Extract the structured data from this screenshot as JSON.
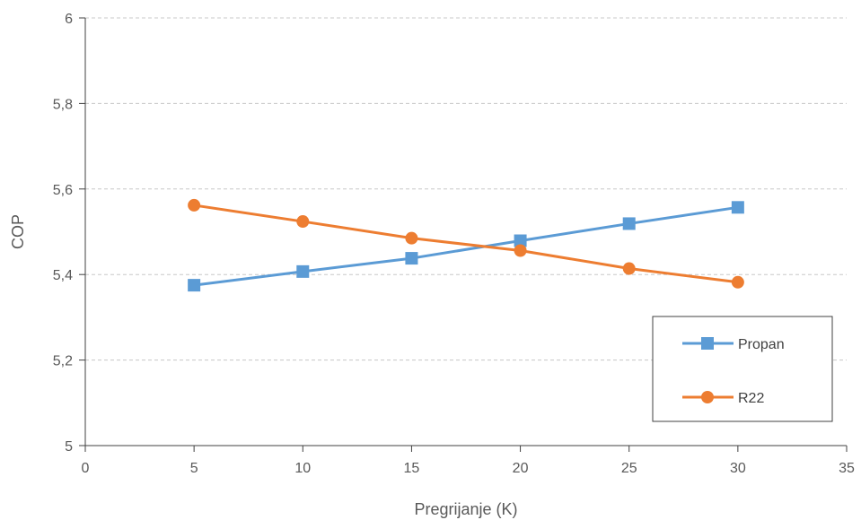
{
  "chart_data": {
    "type": "line",
    "xlabel": "Pregrijanje (K)",
    "ylabel": "COP",
    "xlim": [
      0,
      35
    ],
    "ylim": [
      5,
      6
    ],
    "x_ticks": [
      0,
      5,
      10,
      15,
      20,
      25,
      30,
      35
    ],
    "y_ticks": [
      5,
      5.2,
      5.4,
      5.6,
      5.8,
      6
    ],
    "x_tick_labels": [
      "0",
      "5",
      "10",
      "15",
      "20",
      "25",
      "30",
      "35"
    ],
    "y_tick_labels": [
      "5",
      "5,2",
      "5,4",
      "5,6",
      "5,8",
      "6"
    ],
    "grid": "horizontal dashed",
    "legend_position": "bottom-right inside plot",
    "series": [
      {
        "name": "Propan",
        "color": "#5B9BD5",
        "marker": "square",
        "x": [
          5,
          10,
          15,
          20,
          25,
          30
        ],
        "values": [
          5.375,
          5.407,
          5.438,
          5.479,
          5.519,
          5.557
        ]
      },
      {
        "name": "R22",
        "color": "#ED7D31",
        "marker": "circle",
        "x": [
          5,
          10,
          15,
          20,
          25,
          30
        ],
        "values": [
          5.562,
          5.524,
          5.485,
          5.456,
          5.414,
          5.382
        ]
      }
    ]
  }
}
